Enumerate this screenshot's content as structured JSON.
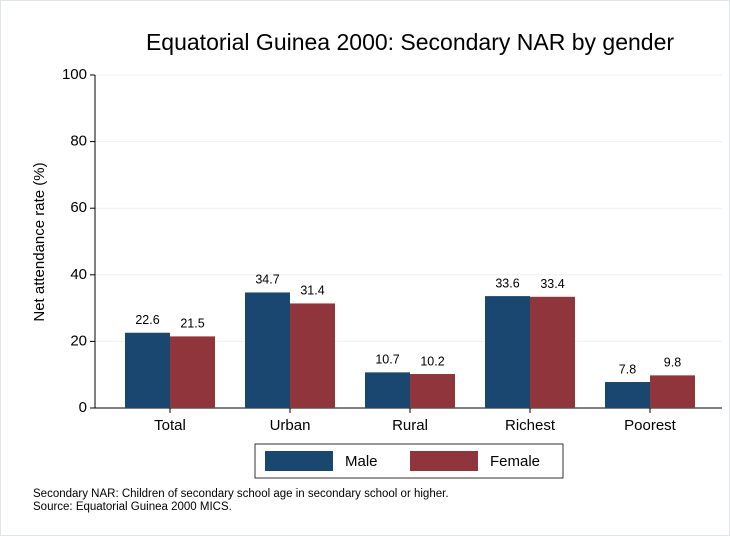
{
  "chart_data": {
    "type": "bar",
    "title": "Equatorial Guinea 2000: Secondary NAR by gender",
    "y_label": "Net attendance rate (%)",
    "categories": [
      "Total",
      "Urban",
      "Rural",
      "Richest",
      "Poorest"
    ],
    "series": [
      {
        "name": "Male",
        "color": "#1a476f",
        "values": [
          22.6,
          34.7,
          10.7,
          33.6,
          7.8
        ]
      },
      {
        "name": "Female",
        "color": "#90353b",
        "values": [
          21.5,
          31.4,
          10.2,
          33.4,
          9.8
        ]
      }
    ],
    "ylim": [
      0,
      100
    ],
    "yticks": [
      0,
      20,
      40,
      60,
      80,
      100
    ],
    "grid": true,
    "legend": "bottom",
    "notes": [
      "Secondary NAR: Children of secondary school age in secondary school or higher.",
      "Source: Equatorial Guinea 2000 MICS."
    ]
  }
}
